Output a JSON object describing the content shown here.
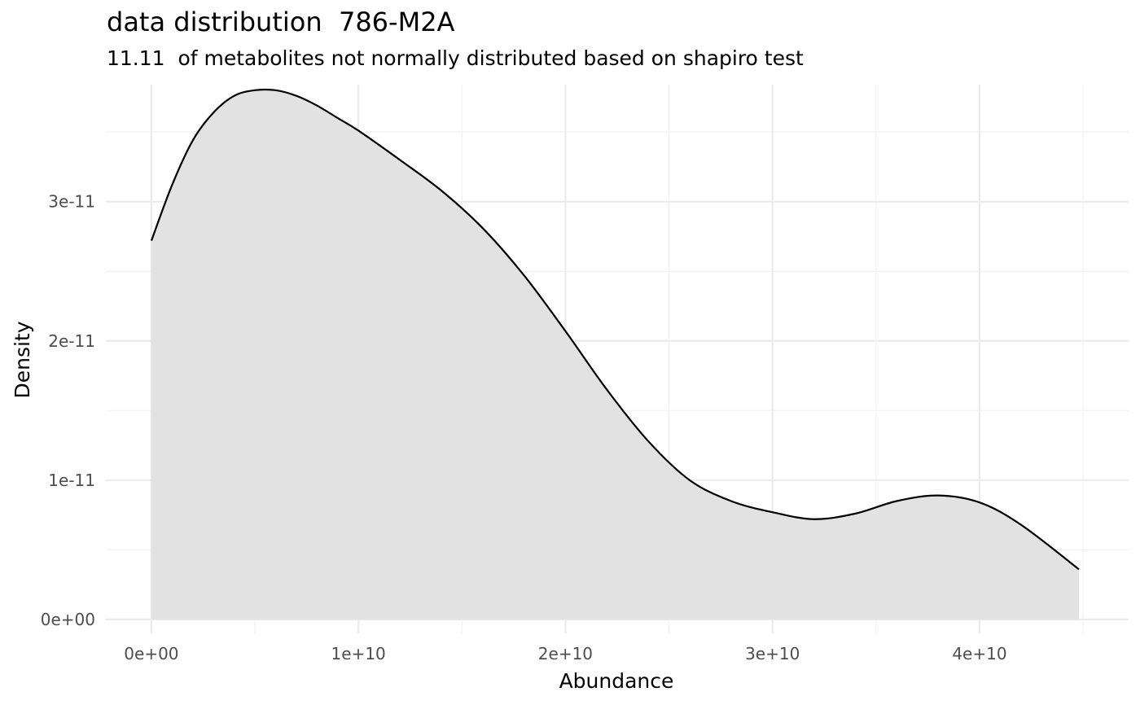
{
  "chart_data": {
    "type": "area",
    "title": "data distribution  786-M2A",
    "subtitle": "11.11  of metabolites not normally distributed based on shapiro test",
    "xlabel": "Abundance",
    "ylabel": "Density",
    "xlim": [
      -2200000000.0,
      47200000000.0
    ],
    "ylim": [
      -1e-12,
      3.84e-11
    ],
    "xticks": [
      0,
      10000000000.0,
      20000000000.0,
      30000000000.0,
      40000000000.0
    ],
    "xtick_labels": [
      "0e+00",
      "1e+10",
      "2e+10",
      "3e+10",
      "4e+10"
    ],
    "yticks": [
      0,
      1e-11,
      2e-11,
      3e-11
    ],
    "ytick_labels": [
      "0e+00",
      "1e-11",
      "2e-11",
      "3e-11"
    ],
    "grid": true,
    "fill_color": "#e2e2e2",
    "line_color": "#000000",
    "series": [
      {
        "x": [
          0,
          1000000000.0,
          2000000000.0,
          3000000000.0,
          4000000000.0,
          5000000000.0,
          6000000000.0,
          7000000000.0,
          8000000000.0,
          9000000000.0,
          10000000000.0,
          12000000000.0,
          14000000000.0,
          16000000000.0,
          18000000000.0,
          20000000000.0,
          22000000000.0,
          24000000000.0,
          26000000000.0,
          28000000000.0,
          30000000000.0,
          32000000000.0,
          34000000000.0,
          36000000000.0,
          38000000000.0,
          40000000000.0,
          42000000000.0,
          44800000000.0
        ],
        "y": [
          2.72e-11,
          3.12e-11,
          3.44e-11,
          3.64e-11,
          3.76e-11,
          3.8e-11,
          3.8e-11,
          3.76e-11,
          3.69e-11,
          3.6e-11,
          3.51e-11,
          3.3e-11,
          3.08e-11,
          2.81e-11,
          2.47e-11,
          2.07e-11,
          1.65e-11,
          1.28e-11,
          1e-11,
          8.5e-12,
          7.7e-12,
          7.2e-12,
          7.6e-12,
          8.5e-12,
          8.9e-12,
          8.4e-12,
          6.8e-12,
          3.6e-12
        ]
      }
    ]
  }
}
